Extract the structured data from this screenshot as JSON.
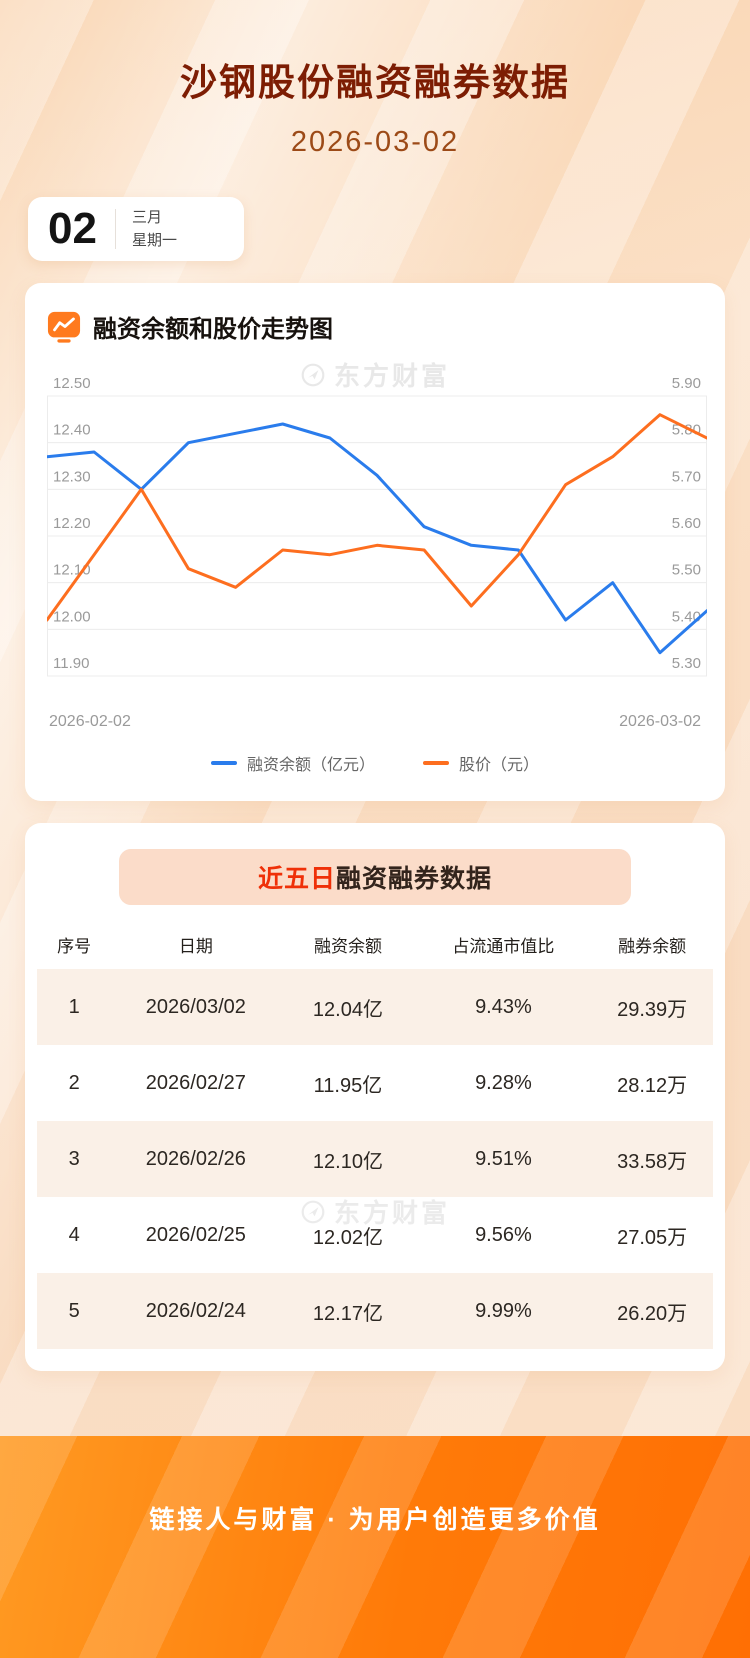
{
  "header": {
    "title": "沙钢股份融资融券数据",
    "date": "2026-03-02",
    "badge": {
      "day": "02",
      "month": "三月",
      "weekday": "星期一"
    }
  },
  "chart_card": {
    "section_title": "融资余额和股价走势图",
    "watermark": "东方财富",
    "x_axis": {
      "start": "2026-02-02",
      "end": "2026-03-02"
    },
    "legend": [
      {
        "label": "融资余额（亿元）",
        "color": "#2a7cec"
      },
      {
        "label": "股价（元）",
        "color": "#fd6e1f"
      }
    ]
  },
  "chart_data": {
    "type": "line",
    "title": "融资余额和股价走势图",
    "x_tick_labels": [
      "2026-02-02",
      "2026-03-02"
    ],
    "n_points": 15,
    "grid": true,
    "legend_position": "bottom",
    "left_axis": {
      "label": "融资余额（亿元）",
      "min": 11.9,
      "max": 12.5,
      "ticks": [
        11.9,
        12.0,
        12.1,
        12.2,
        12.3,
        12.4,
        12.5
      ]
    },
    "right_axis": {
      "label": "股价（元）",
      "min": 5.3,
      "max": 5.9,
      "ticks": [
        5.3,
        5.4,
        5.5,
        5.6,
        5.7,
        5.8,
        5.9
      ]
    },
    "series": [
      {
        "name": "融资余额（亿元）",
        "axis": "left",
        "color": "#2a7cec",
        "values": [
          12.37,
          12.38,
          12.3,
          12.4,
          12.42,
          12.44,
          12.41,
          12.33,
          12.22,
          12.18,
          12.17,
          12.02,
          12.1,
          11.95,
          12.04
        ]
      },
      {
        "name": "股价（元）",
        "axis": "right",
        "color": "#fd6e1f",
        "values": [
          5.42,
          5.56,
          5.7,
          5.53,
          5.49,
          5.57,
          5.56,
          5.58,
          5.57,
          5.45,
          5.56,
          5.71,
          5.77,
          5.86,
          5.81
        ]
      }
    ]
  },
  "table_card": {
    "title_highlight": "近五日",
    "title_rest": "融资融券数据",
    "watermark": "东方财富",
    "columns": [
      "序号",
      "日期",
      "融资余额",
      "占流通市值比",
      "融券余额"
    ],
    "rows": [
      [
        "1",
        "2026/03/02",
        "12.04亿",
        "9.43%",
        "29.39万"
      ],
      [
        "2",
        "2026/02/27",
        "11.95亿",
        "9.28%",
        "28.12万"
      ],
      [
        "3",
        "2026/02/26",
        "12.10亿",
        "9.51%",
        "33.58万"
      ],
      [
        "4",
        "2026/02/25",
        "12.02亿",
        "9.56%",
        "27.05万"
      ],
      [
        "5",
        "2026/02/24",
        "12.17亿",
        "9.99%",
        "26.20万"
      ]
    ]
  },
  "footer": {
    "slogan": "链接人与财富 · 为用户创造更多价值"
  },
  "colors": {
    "title": "#7d1d03",
    "highlight_red": "#ef3008",
    "line_blue": "#2a7cec",
    "line_orange": "#fd6e1f",
    "footer_orange": "#ff6f04",
    "page_bg": "#fbe0c6",
    "stripe_row": "#faf0e7"
  }
}
